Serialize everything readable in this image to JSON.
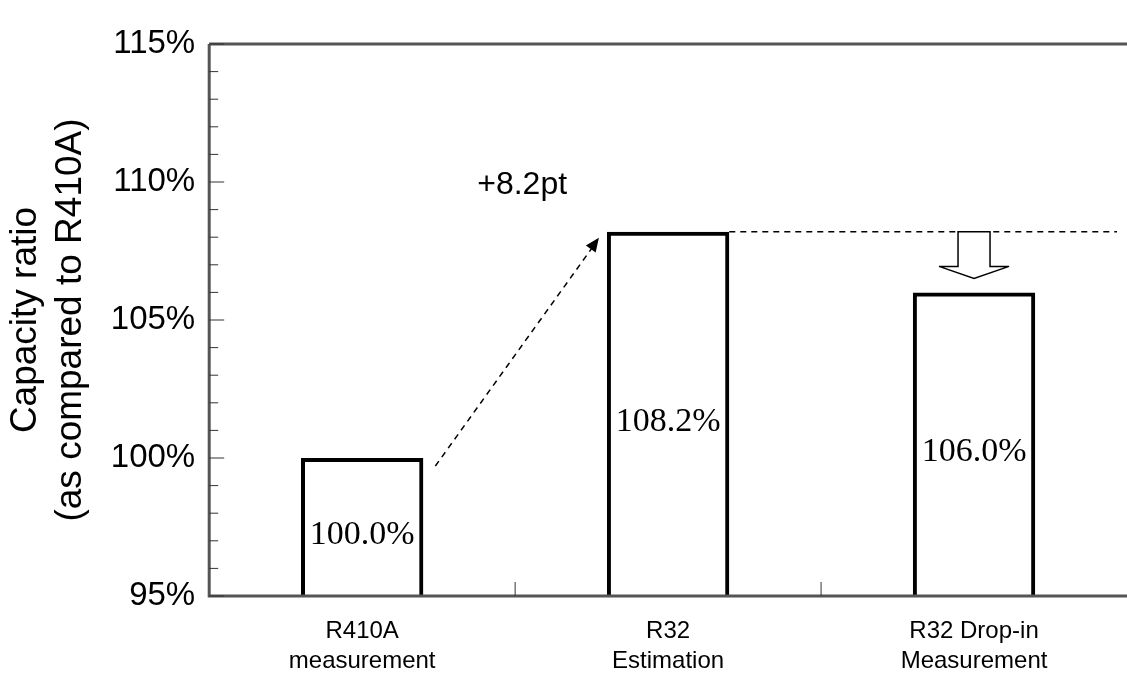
{
  "chart_data": {
    "type": "bar",
    "ylabel": "Capacity ratio (as compared to R410A)",
    "categories": [
      "R410A measurement",
      "R32 Estimation",
      "R32 Drop-in Measurement"
    ],
    "values": [
      100.0,
      108.2,
      106.0
    ],
    "color": "#000000",
    "value_labels": [
      "100.0%",
      "108.2%",
      "106.0%"
    ],
    "ylim": [
      95,
      115
    ],
    "yticks": [
      {
        "value": 95,
        "label": "95%"
      },
      {
        "value": 96,
        "label": null
      },
      {
        "value": 97,
        "label": null
      },
      {
        "value": 98,
        "label": null
      },
      {
        "value": 99,
        "label": null
      },
      {
        "value": 100,
        "label": "100%"
      },
      {
        "value": 101,
        "label": null
      },
      {
        "value": 102,
        "label": null
      },
      {
        "value": 103,
        "label": null
      },
      {
        "value": 104,
        "label": null
      },
      {
        "value": 105,
        "label": "105%"
      },
      {
        "value": 106,
        "label": null
      },
      {
        "value": 107,
        "label": null
      },
      {
        "value": 108,
        "label": null
      },
      {
        "value": 109,
        "label": null
      },
      {
        "value": 110,
        "label": "110%"
      },
      {
        "value": 111,
        "label": null
      },
      {
        "value": 112,
        "label": null
      },
      {
        "value": 113,
        "label": null
      },
      {
        "value": 114,
        "label": null
      },
      {
        "value": 115,
        "label": "115%"
      }
    ],
    "ref_lines": [
      {
        "axis": "y",
        "value": 108.2,
        "line_style": "dashed",
        "color": "#000000"
      }
    ],
    "annotations": [
      "+8.2pt"
    ],
    "grid": false,
    "legend": false
  }
}
